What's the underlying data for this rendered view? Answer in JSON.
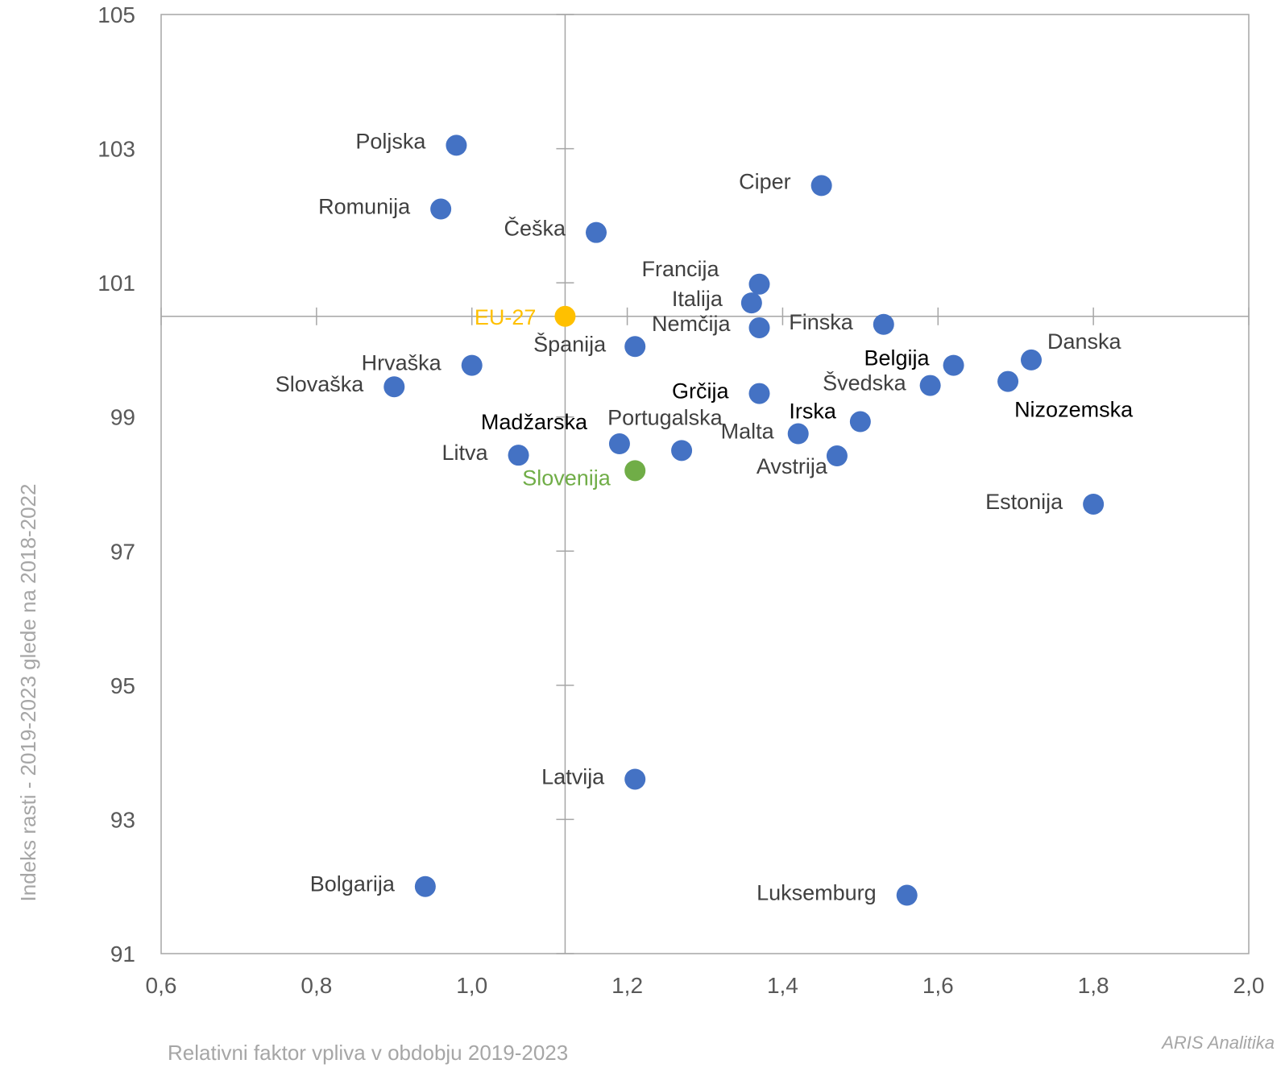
{
  "chart_data": {
    "type": "scatter",
    "xlabel": "Relativni faktor vpliva v obdobju 2019-2023",
    "ylabel": "Indeks rasti - 2019-2023 glede na 2018-2022",
    "xlim": [
      0.6,
      2.0
    ],
    "ylim": [
      91,
      105
    ],
    "x_ticks": [
      "0,6",
      "0,8",
      "1,0",
      "1,2",
      "1,4",
      "1,6",
      "1,8",
      "2,0"
    ],
    "y_ticks": [
      "91",
      "93",
      "95",
      "97",
      "99",
      "101",
      "103",
      "105"
    ],
    "reference_lines": {
      "x": 1.12,
      "y": 100.5
    },
    "grid": false,
    "colors": {
      "default": "#4472c4",
      "eu": "#ffc000",
      "slovenia": "#70ad47"
    },
    "points": [
      {
        "label": "Poljska",
        "x": 0.98,
        "y": 103.05,
        "color": "default",
        "label_color": "#404040"
      },
      {
        "label": "Romunija",
        "x": 0.96,
        "y": 102.1,
        "color": "default",
        "label_color": "#404040"
      },
      {
        "label": "Češka",
        "x": 1.16,
        "y": 101.75,
        "color": "default",
        "label_color": "#404040"
      },
      {
        "label": "Ciper",
        "x": 1.45,
        "y": 102.45,
        "color": "default",
        "label_color": "#404040"
      },
      {
        "label": "Francija",
        "x": 1.37,
        "y": 100.98,
        "color": "default",
        "label_color": "#404040"
      },
      {
        "label": "Italija",
        "x": 1.36,
        "y": 100.7,
        "color": "default",
        "label_color": "#404040"
      },
      {
        "label": "EU-27",
        "x": 1.12,
        "y": 100.5,
        "color": "eu",
        "label_color": "#ffc000"
      },
      {
        "label": "Nemčija",
        "x": 1.37,
        "y": 100.33,
        "color": "default",
        "label_color": "#404040"
      },
      {
        "label": "Finska",
        "x": 1.53,
        "y": 100.38,
        "color": "default",
        "label_color": "#404040"
      },
      {
        "label": "Španija",
        "x": 1.21,
        "y": 100.05,
        "color": "default",
        "label_color": "#404040"
      },
      {
        "label": "Hrvaška",
        "x": 1.0,
        "y": 99.77,
        "color": "default",
        "label_color": "#404040"
      },
      {
        "label": "Slovaška",
        "x": 0.9,
        "y": 99.45,
        "color": "default",
        "label_color": "#404040"
      },
      {
        "label": "Belgija",
        "x": 1.62,
        "y": 99.77,
        "color": "default",
        "label_color": "#000000"
      },
      {
        "label": "Danska",
        "x": 1.72,
        "y": 99.85,
        "color": "default",
        "label_color": "#404040"
      },
      {
        "label": "Švedska",
        "x": 1.59,
        "y": 99.47,
        "color": "default",
        "label_color": "#404040"
      },
      {
        "label": "Nizozemska",
        "x": 1.69,
        "y": 99.53,
        "color": "default",
        "label_color": "#000000"
      },
      {
        "label": "Grčija",
        "x": 1.37,
        "y": 99.35,
        "color": "default",
        "label_color": "#000000"
      },
      {
        "label": "Irska",
        "x": 1.5,
        "y": 98.93,
        "color": "default",
        "label_color": "#000000"
      },
      {
        "label": "Malta",
        "x": 1.42,
        "y": 98.75,
        "color": "default",
        "label_color": "#404040"
      },
      {
        "label": "Portugalska",
        "x": 1.27,
        "y": 98.5,
        "color": "default",
        "label_color": "#404040"
      },
      {
        "label": "Madžarska",
        "x": 1.19,
        "y": 98.6,
        "color": "default",
        "label_color": "#000000"
      },
      {
        "label": "Litva",
        "x": 1.06,
        "y": 98.43,
        "color": "default",
        "label_color": "#404040"
      },
      {
        "label": "Avstrija",
        "x": 1.47,
        "y": 98.42,
        "color": "default",
        "label_color": "#404040"
      },
      {
        "label": "Slovenija",
        "x": 1.21,
        "y": 98.2,
        "color": "slovenia",
        "label_color": "#70ad47"
      },
      {
        "label": "Estonija",
        "x": 1.8,
        "y": 97.7,
        "color": "default",
        "label_color": "#404040"
      },
      {
        "label": "Latvija",
        "x": 1.21,
        "y": 93.6,
        "color": "default",
        "label_color": "#404040"
      },
      {
        "label": "Bolgarija",
        "x": 0.94,
        "y": 92.0,
        "color": "default",
        "label_color": "#404040"
      },
      {
        "label": "Luksemburg",
        "x": 1.56,
        "y": 91.87,
        "color": "default",
        "label_color": "#404040"
      }
    ]
  },
  "source": "ARIS Analitika"
}
